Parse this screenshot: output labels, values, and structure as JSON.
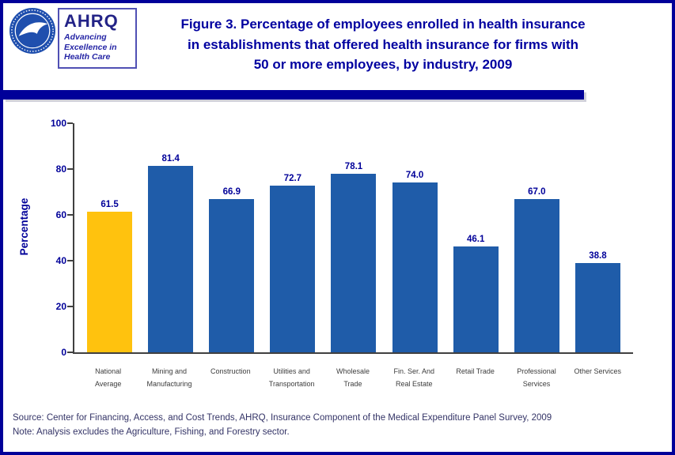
{
  "colors": {
    "navy": "#000099",
    "title_blue": "#0000A0",
    "bar_blue": "#1F5CA9",
    "bar_gold": "#FFC20E"
  },
  "header": {
    "title_lines": [
      "Figure 3. Percentage of employees enrolled in health insurance",
      "in establishments that offered health insurance for firms with",
      "50 or more employees, by industry, 2009"
    ],
    "logo": {
      "org_abbr": "AHRQ",
      "tagline_lines": [
        "Advancing",
        "Excellence in",
        "Health Care"
      ]
    }
  },
  "chart_data": {
    "type": "bar",
    "title": "Figure 3. Percentage of employees enrolled in health insurance in establishments that offered health insurance for firms with 50 or more employees, by industry, 2009",
    "xlabel": "",
    "ylabel": "Percentage",
    "ylim": [
      0,
      100
    ],
    "yticks": [
      0,
      20,
      40,
      60,
      80,
      100
    ],
    "grid": false,
    "legend": "none",
    "categories": [
      "National Average",
      "Mining and Manufacturing",
      "Construction",
      "Utilities and Transportation",
      "Wholesale Trade",
      "Fin. Ser. And Real Estate",
      "Retail Trade",
      "Professional Services",
      "Other Services"
    ],
    "category_label_lines": [
      [
        "National",
        "Average"
      ],
      [
        "Mining and",
        "Manufacturing"
      ],
      [
        "Construction"
      ],
      [
        "Utilities and",
        "Transportation"
      ],
      [
        "Wholesale",
        "Trade"
      ],
      [
        "Fin. Ser. And",
        "Real Estate"
      ],
      [
        "Retail Trade"
      ],
      [
        "Professional",
        "Services"
      ],
      [
        "Other Services"
      ]
    ],
    "values": [
      61.5,
      81.4,
      66.9,
      72.7,
      78.1,
      74.0,
      46.1,
      67.0,
      38.8
    ],
    "value_label_decimals": 1,
    "bar_color_default": "#1F5CA9",
    "bar_color_highlight": "#FFC20E",
    "highlight_index": 0
  },
  "footer": {
    "source": "Source: Center for Financing, Access, and Cost Trends, AHRQ, Insurance Component of the Medical Expenditure Panel Survey, 2009",
    "note": "Note: Analysis excludes the Agriculture, Fishing, and Forestry sector."
  }
}
